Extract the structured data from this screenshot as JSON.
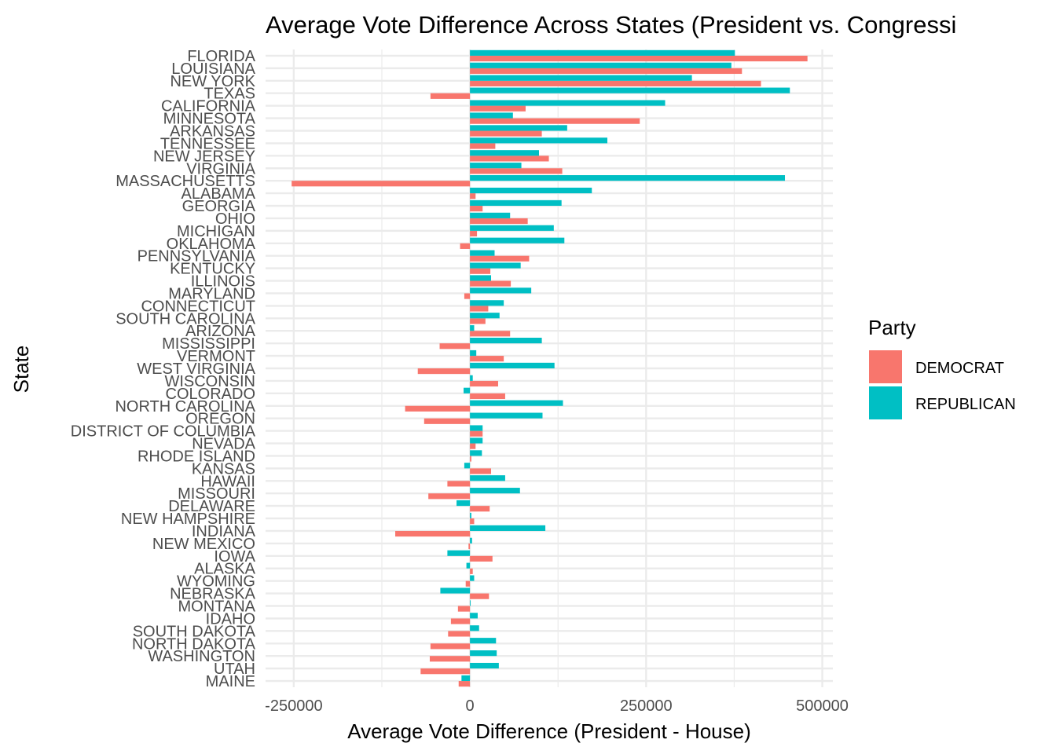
{
  "chart_data": {
    "type": "bar",
    "orientation": "horizontal",
    "title": "Average Vote Difference Across States (President vs. Congressi",
    "xlabel": "Average Vote Difference (President - House)",
    "ylabel": "State",
    "xlim": [
      -290000,
      515000
    ],
    "x_ticks": [
      -250000,
      0,
      250000,
      500000
    ],
    "x_tick_labels": [
      "-250000",
      "0",
      "250000",
      "500000"
    ],
    "grid": true,
    "legend_position": "right",
    "legend_title": "Party",
    "categories": [
      "FLORIDA",
      "LOUISIANA",
      "NEW YORK",
      "TEXAS",
      "CALIFORNIA",
      "MINNESOTA",
      "ARKANSAS",
      "TENNESSEE",
      "NEW JERSEY",
      "VIRGINIA",
      "MASSACHUSETTS",
      "ALABAMA",
      "GEORGIA",
      "OHIO",
      "MICHIGAN",
      "OKLAHOMA",
      "PENNSYLVANIA",
      "KENTUCKY",
      "ILLINOIS",
      "MARYLAND",
      "CONNECTICUT",
      "SOUTH CAROLINA",
      "ARIZONA",
      "MISSISSIPPI",
      "VERMONT",
      "WEST VIRGINIA",
      "WISCONSIN",
      "COLORADO",
      "NORTH CAROLINA",
      "OREGON",
      "DISTRICT OF COLUMBIA",
      "NEVADA",
      "RHODE ISLAND",
      "KANSAS",
      "HAWAII",
      "MISSOURI",
      "DELAWARE",
      "NEW HAMPSHIRE",
      "INDIANA",
      "NEW MEXICO",
      "IOWA",
      "ALASKA",
      "WYOMING",
      "NEBRASKA",
      "MONTANA",
      "IDAHO",
      "SOUTH DAKOTA",
      "NORTH DAKOTA",
      "WASHINGTON",
      "UTAH",
      "MAINE"
    ],
    "series": [
      {
        "name": "DEMOCRAT",
        "color": "#F8766D",
        "values": [
          479000,
          386000,
          413000,
          -56000,
          79000,
          241000,
          102000,
          36000,
          112000,
          131000,
          -253000,
          8000,
          18000,
          82000,
          10000,
          -14000,
          84000,
          29000,
          58000,
          -8000,
          26000,
          22000,
          57000,
          -43000,
          48000,
          -74000,
          40000,
          50000,
          -92000,
          -65000,
          18000,
          8000,
          2000,
          30000,
          -32000,
          -59000,
          28000,
          6000,
          -106000,
          -2000,
          32000,
          4000,
          -6000,
          27000,
          -17000,
          -27000,
          -31000,
          -56000,
          -57000,
          -70000,
          -16000
        ]
      },
      {
        "name": "REPUBLICAN",
        "color": "#00BFC4",
        "values": [
          376000,
          371000,
          315000,
          454000,
          277000,
          61000,
          138000,
          195000,
          98000,
          73000,
          447000,
          173000,
          130000,
          57000,
          119000,
          134000,
          35000,
          72000,
          30000,
          87000,
          48000,
          42000,
          6000,
          102000,
          9000,
          120000,
          4000,
          -9000,
          132000,
          103000,
          18000,
          18000,
          17000,
          -8000,
          50000,
          71000,
          -19000,
          2000,
          107000,
          3000,
          -32000,
          -5000,
          6000,
          -42000,
          1000,
          11000,
          13000,
          37000,
          38000,
          41000,
          -12000
        ]
      }
    ]
  }
}
